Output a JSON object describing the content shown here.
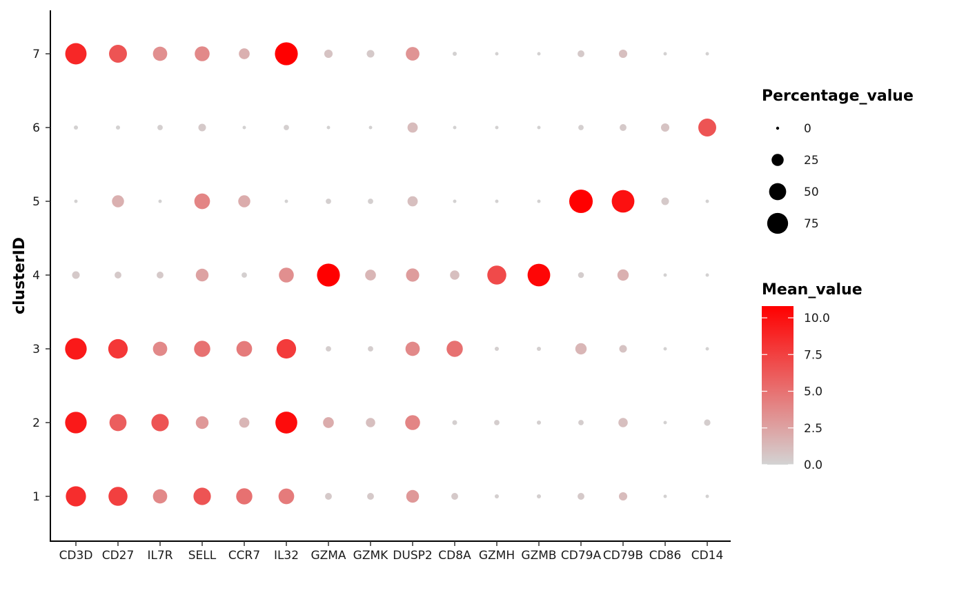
{
  "chart_data": {
    "type": "scatter",
    "subtype": "dot-plot",
    "title": "",
    "xlabel": "",
    "ylabel": "clusterID",
    "categories": [
      "CD3D",
      "CD27",
      "IL7R",
      "SELL",
      "CCR7",
      "IL32",
      "GZMA",
      "GZMK",
      "DUSP2",
      "CD8A",
      "GZMH",
      "GZMB",
      "CD79A",
      "CD79B",
      "CD86",
      "CD14"
    ],
    "clusters": [
      "1",
      "2",
      "3",
      "4",
      "5",
      "6",
      "7"
    ],
    "size_legend": {
      "title": "Percentage_value",
      "breaks": [
        0,
        25,
        50,
        75
      ],
      "labels": [
        "0",
        "25",
        "50",
        "75"
      ]
    },
    "color_legend": {
      "title": "Mean_value",
      "breaks": [
        0,
        2.5,
        5,
        7.5,
        10
      ],
      "labels": [
        "0.0",
        "2.5",
        "5.0",
        "7.5",
        "10.0"
      ],
      "min": 0,
      "max": 10.8,
      "low_color": "#d3d3d3",
      "high_color": "#ff0000"
    },
    "grid": false,
    "legend_position": "right",
    "points": [
      {
        "cluster": "1",
        "values": {
          "CD3D": {
            "pct": 70,
            "mean": 8.5
          },
          "CD27": {
            "pct": 62,
            "mean": 7.5
          },
          "IL7R": {
            "pct": 35,
            "mean": 3.8
          },
          "SELL": {
            "pct": 52,
            "mean": 6.5
          },
          "CCR7": {
            "pct": 45,
            "mean": 5.0
          },
          "IL32": {
            "pct": 42,
            "mean": 4.5
          },
          "GZMA": {
            "pct": 8,
            "mean": 0.5
          },
          "GZMK": {
            "pct": 8,
            "mean": 0.5
          },
          "DUSP2": {
            "pct": 28,
            "mean": 3.0
          },
          "CD8A": {
            "pct": 8,
            "mean": 0.5
          },
          "GZMH": {
            "pct": 3,
            "mean": 0.2
          },
          "GZMB": {
            "pct": 3,
            "mean": 0.2
          },
          "CD79A": {
            "pct": 8,
            "mean": 0.5
          },
          "CD79B": {
            "pct": 12,
            "mean": 1.2
          },
          "CD86": {
            "pct": 2,
            "mean": 0.1
          },
          "CD14": {
            "pct": 2,
            "mean": 0.1
          }
        }
      },
      {
        "cluster": "2",
        "values": {
          "CD3D": {
            "pct": 80,
            "mean": 9.5
          },
          "CD27": {
            "pct": 50,
            "mean": 6.0
          },
          "IL7R": {
            "pct": 52,
            "mean": 6.5
          },
          "SELL": {
            "pct": 28,
            "mean": 3.0
          },
          "CCR7": {
            "pct": 18,
            "mean": 1.5
          },
          "IL32": {
            "pct": 82,
            "mean": 10.2
          },
          "GZMA": {
            "pct": 20,
            "mean": 2.0
          },
          "GZMK": {
            "pct": 15,
            "mean": 1.0
          },
          "DUSP2": {
            "pct": 38,
            "mean": 4.0
          },
          "CD8A": {
            "pct": 4,
            "mean": 0.2
          },
          "GZMH": {
            "pct": 5,
            "mean": 0.3
          },
          "GZMB": {
            "pct": 3,
            "mean": 0.2
          },
          "CD79A": {
            "pct": 5,
            "mean": 0.3
          },
          "CD79B": {
            "pct": 15,
            "mean": 1.0
          },
          "CD86": {
            "pct": 2,
            "mean": 0.1
          },
          "CD14": {
            "pct": 7,
            "mean": 0.3
          }
        }
      },
      {
        "cluster": "3",
        "values": {
          "CD3D": {
            "pct": 80,
            "mean": 9.5
          },
          "CD27": {
            "pct": 65,
            "mean": 8.0
          },
          "IL7R": {
            "pct": 35,
            "mean": 3.8
          },
          "SELL": {
            "pct": 45,
            "mean": 5.0
          },
          "CCR7": {
            "pct": 42,
            "mean": 4.5
          },
          "IL32": {
            "pct": 65,
            "mean": 7.8
          },
          "GZMA": {
            "pct": 5,
            "mean": 0.3
          },
          "GZMK": {
            "pct": 5,
            "mean": 0.3
          },
          "DUSP2": {
            "pct": 35,
            "mean": 3.8
          },
          "CD8A": {
            "pct": 45,
            "mean": 5.0
          },
          "GZMH": {
            "pct": 3,
            "mean": 0.2
          },
          "GZMB": {
            "pct": 3,
            "mean": 0.2
          },
          "CD79A": {
            "pct": 22,
            "mean": 1.5
          },
          "CD79B": {
            "pct": 10,
            "mean": 0.8
          },
          "CD86": {
            "pct": 2,
            "mean": 0.1
          },
          "CD14": {
            "pct": 2,
            "mean": 0.1
          }
        }
      },
      {
        "cluster": "4",
        "values": {
          "CD3D": {
            "pct": 10,
            "mean": 0.5
          },
          "CD27": {
            "pct": 8,
            "mean": 0.5
          },
          "IL7R": {
            "pct": 8,
            "mean": 0.5
          },
          "SELL": {
            "pct": 28,
            "mean": 2.5
          },
          "CCR7": {
            "pct": 5,
            "mean": 0.2
          },
          "IL32": {
            "pct": 38,
            "mean": 3.5
          },
          "GZMA": {
            "pct": 90,
            "mean": 10.8
          },
          "GZMK": {
            "pct": 20,
            "mean": 1.5
          },
          "DUSP2": {
            "pct": 30,
            "mean": 2.8
          },
          "CD8A": {
            "pct": 15,
            "mean": 1.0
          },
          "GZMH": {
            "pct": 62,
            "mean": 7.0
          },
          "GZMB": {
            "pct": 88,
            "mean": 10.5
          },
          "CD79A": {
            "pct": 6,
            "mean": 0.3
          },
          "CD79B": {
            "pct": 22,
            "mean": 1.8
          },
          "CD86": {
            "pct": 2,
            "mean": 0.1
          },
          "CD14": {
            "pct": 2,
            "mean": 0.1
          }
        }
      },
      {
        "cluster": "5",
        "values": {
          "CD3D": {
            "pct": 2,
            "mean": 0.1
          },
          "CD27": {
            "pct": 25,
            "mean": 1.8
          },
          "IL7R": {
            "pct": 2,
            "mean": 0.1
          },
          "SELL": {
            "pct": 42,
            "mean": 4.0
          },
          "CCR7": {
            "pct": 25,
            "mean": 2.0
          },
          "IL32": {
            "pct": 2,
            "mean": 0.1
          },
          "GZMA": {
            "pct": 5,
            "mean": 0.2
          },
          "GZMK": {
            "pct": 5,
            "mean": 0.2
          },
          "DUSP2": {
            "pct": 18,
            "mean": 1.0
          },
          "CD8A": {
            "pct": 2,
            "mean": 0.1
          },
          "GZMH": {
            "pct": 2,
            "mean": 0.1
          },
          "GZMB": {
            "pct": 2,
            "mean": 0.1
          },
          "CD79A": {
            "pct": 95,
            "mean": 10.8
          },
          "CD79B": {
            "pct": 88,
            "mean": 10.0
          },
          "CD86": {
            "pct": 10,
            "mean": 0.5
          },
          "CD14": {
            "pct": 2,
            "mean": 0.1
          }
        }
      },
      {
        "cluster": "6",
        "values": {
          "CD3D": {
            "pct": 3,
            "mean": 0.1
          },
          "CD27": {
            "pct": 3,
            "mean": 0.1
          },
          "IL7R": {
            "pct": 5,
            "mean": 0.2
          },
          "SELL": {
            "pct": 10,
            "mean": 0.5
          },
          "CCR7": {
            "pct": 2,
            "mean": 0.1
          },
          "IL32": {
            "pct": 5,
            "mean": 0.2
          },
          "GZMA": {
            "pct": 2,
            "mean": 0.1
          },
          "GZMK": {
            "pct": 2,
            "mean": 0.1
          },
          "DUSP2": {
            "pct": 18,
            "mean": 1.2
          },
          "CD8A": {
            "pct": 2,
            "mean": 0.1
          },
          "GZMH": {
            "pct": 2,
            "mean": 0.1
          },
          "GZMB": {
            "pct": 2,
            "mean": 0.1
          },
          "CD79A": {
            "pct": 5,
            "mean": 0.2
          },
          "CD79B": {
            "pct": 8,
            "mean": 0.5
          },
          "CD86": {
            "pct": 12,
            "mean": 0.8
          },
          "CD14": {
            "pct": 55,
            "mean": 6.5
          }
        }
      },
      {
        "cluster": "7",
        "values": {
          "CD3D": {
            "pct": 78,
            "mean": 8.8
          },
          "CD27": {
            "pct": 55,
            "mean": 6.5
          },
          "IL7R": {
            "pct": 35,
            "mean": 3.5
          },
          "SELL": {
            "pct": 38,
            "mean": 3.8
          },
          "CCR7": {
            "pct": 20,
            "mean": 1.8
          },
          "IL32": {
            "pct": 90,
            "mean": 10.8
          },
          "GZMA": {
            "pct": 12,
            "mean": 0.8
          },
          "GZMK": {
            "pct": 10,
            "mean": 0.5
          },
          "DUSP2": {
            "pct": 32,
            "mean": 3.2
          },
          "CD8A": {
            "pct": 3,
            "mean": 0.1
          },
          "GZMH": {
            "pct": 2,
            "mean": 0.1
          },
          "GZMB": {
            "pct": 2,
            "mean": 0.1
          },
          "CD79A": {
            "pct": 8,
            "mean": 0.5
          },
          "CD79B": {
            "pct": 12,
            "mean": 1.0
          },
          "CD86": {
            "pct": 2,
            "mean": 0.1
          },
          "CD14": {
            "pct": 2,
            "mean": 0.1
          }
        }
      }
    ]
  }
}
